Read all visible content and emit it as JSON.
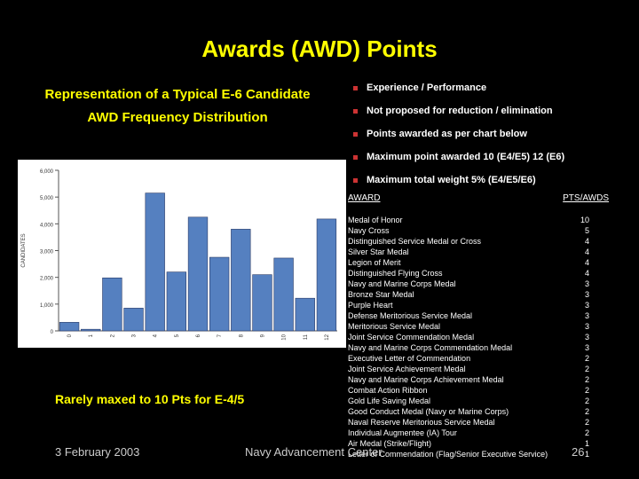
{
  "title": "Awards (AWD) Points",
  "subtitle": [
    "Representation of a Typical E-6 Candidate",
    "AWD Frequency Distribution"
  ],
  "bullets": [
    "Experience / Performance",
    "Not proposed for reduction / elimination",
    "Points awarded as per chart below",
    "Maximum point awarded 10 (E4/E5) 12 (E6)",
    "Maximum total weight  5% (E4/E5/E6)"
  ],
  "table": {
    "header_award": "AWARD",
    "header_pts": "PTS/AWDS",
    "rows": [
      {
        "award": "Medal of Honor",
        "pts": "10"
      },
      {
        "award": "Navy Cross",
        "pts": "5"
      },
      {
        "award": "Distinguished Service Medal or Cross",
        "pts": "4"
      },
      {
        "award": "Silver Star Medal",
        "pts": "4"
      },
      {
        "award": "Legion of Merit",
        "pts": "4"
      },
      {
        "award": "Distinguished Flying Cross",
        "pts": "4"
      },
      {
        "award": "Navy and Marine Corps Medal",
        "pts": "3"
      },
      {
        "award": "Bronze Star Medal",
        "pts": "3"
      },
      {
        "award": "Purple Heart",
        "pts": "3"
      },
      {
        "award": "Defense Meritorious Service Medal",
        "pts": "3"
      },
      {
        "award": "Meritorious Service Medal",
        "pts": "3"
      },
      {
        "award": "Joint Service Commendation Medal",
        "pts": "3"
      },
      {
        "award": "Navy and Marine Corps Commendation Medal",
        "pts": "3"
      },
      {
        "award": "Executive Letter of Commendation",
        "pts": "2"
      },
      {
        "award": "Joint Service Achievement Medal",
        "pts": "2"
      },
      {
        "award": "Navy and Marine Corps Achievement Medal",
        "pts": "2"
      },
      {
        "award": "Combat Action Ribbon",
        "pts": "2"
      },
      {
        "award": "Gold Life Saving Medal",
        "pts": "2"
      },
      {
        "award": "Good Conduct Medal (Navy or Marine Corps)",
        "pts": "2"
      },
      {
        "award": "Naval Reserve Meritorious Service Medal",
        "pts": "2"
      },
      {
        "award": "Individual Augmentee (IA) Tour",
        "pts": "2"
      },
      {
        "award": "Air Medal (Strike/Flight)",
        "pts": "1"
      },
      {
        "award": "Letter of Commendation (Flag/Senior Executive Service)",
        "pts": "1"
      }
    ]
  },
  "note": "Rarely maxed to 10 Pts for E-4/5",
  "footer": {
    "date": "3 February 2003",
    "org": "Navy Advancement Center",
    "page": "26"
  },
  "colors": {
    "title": "#ffff00",
    "bar": "#5580c0",
    "bullet": "#cc3333"
  },
  "chart_data": {
    "type": "bar",
    "categories": [
      "0",
      "1",
      "2",
      "3",
      "4",
      "5",
      "6",
      "7",
      "8",
      "9",
      "10",
      "11",
      "12"
    ],
    "values": [
      320,
      60,
      1980,
      850,
      5150,
      2200,
      4250,
      2750,
      3800,
      2100,
      2720,
      1220,
      4180
    ],
    "ylabel": "CANDIDATES",
    "ylim": [
      0,
      6000
    ],
    "yticks": [
      "0",
      "1,000",
      "2,000",
      "3,000",
      "4,000",
      "5,000",
      "6,000"
    ],
    "grid": false
  }
}
